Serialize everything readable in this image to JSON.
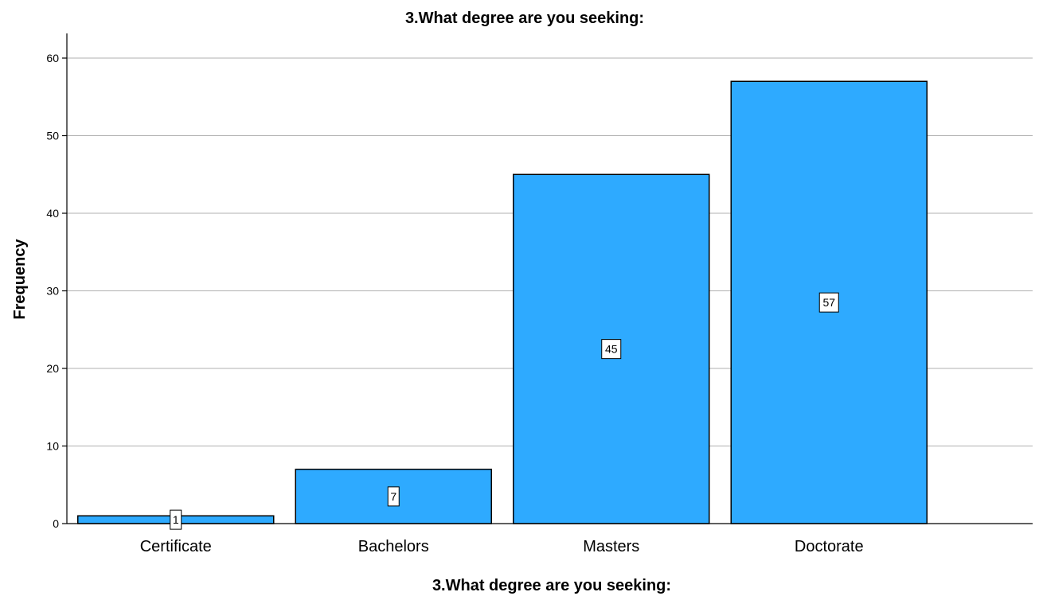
{
  "chart_data": {
    "type": "bar",
    "title": "3.What degree are you seeking:",
    "xlabel": "3.What degree are you seeking:",
    "ylabel": "Frequency",
    "categories": [
      "Certificate",
      "Bachelors",
      "Masters",
      "Doctorate"
    ],
    "values": [
      1,
      7,
      45,
      57
    ],
    "data_labels": [
      "1",
      "7",
      "45",
      "57"
    ],
    "ylim": [
      0,
      63
    ],
    "yticks": [
      "0",
      "10",
      "20",
      "30",
      "40",
      "50",
      "60"
    ],
    "grid": "horizontal",
    "bar_color": "#2eaaff",
    "bar_edge_color": "#000000"
  }
}
